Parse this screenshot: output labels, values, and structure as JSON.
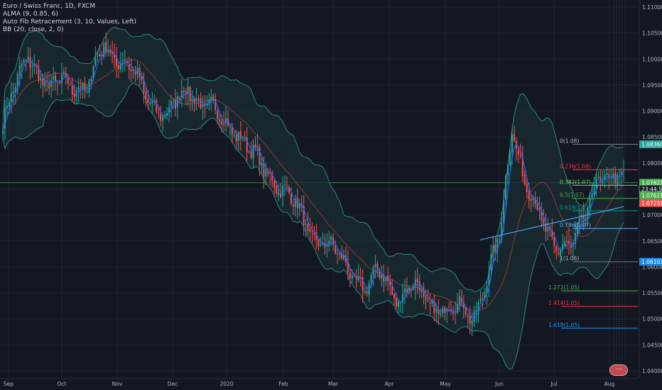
{
  "legend": {
    "symbol": "Euro / Swiss Franc, 1D, FXCM",
    "alma": "ALMA (9, 0.85, 6)",
    "fib": "Auto Fib Retracement (3, 10, Values, Left)",
    "bb": "BB (20, close, 2, 0)"
  },
  "colors": {
    "background": "#131722",
    "grid": "#1f2330",
    "up": "#26a69a",
    "down": "#ef5350",
    "alma": "#2962ff",
    "bb_basis": "#8b3a3a",
    "bb_band": "#2a8a82",
    "bb_fill": "#1b2e33",
    "trendline": "#42a5f5"
  },
  "chart_data": {
    "type": "candlestick",
    "instrument": "Euro / Swiss Franc",
    "timeframe": "1D",
    "x_labels": [
      "Sep",
      "Oct",
      "Nov",
      "Dec",
      "2020",
      "Feb",
      "Mar",
      "Apr",
      "May",
      "Jun",
      "Jul",
      "Aug"
    ],
    "y_ticks": [
      "1.11000",
      "1.10500",
      "1.10000",
      "1.09500",
      "1.09000",
      "1.08500",
      "1.08000",
      "1.07500",
      "1.07000",
      "1.06500",
      "1.06000",
      "1.05500",
      "1.05000",
      "1.04500",
      "1.04000"
    ],
    "ylim": [
      1.0385,
      1.1115
    ],
    "close_path": [
      [
        0,
        1.0875
      ],
      [
        12,
        1.1015
      ],
      [
        22,
        1.0935
      ],
      [
        30,
        1.0965
      ],
      [
        40,
        1.0935
      ],
      [
        48,
        1.103
      ],
      [
        58,
        1.099
      ],
      [
        68,
        1.0935
      ],
      [
        78,
        1.0885
      ],
      [
        88,
        1.095
      ],
      [
        95,
        1.091
      ],
      [
        110,
        1.087
      ],
      [
        118,
        1.0815
      ],
      [
        128,
        1.0775
      ],
      [
        138,
        1.0722
      ],
      [
        148,
        1.066
      ],
      [
        155,
        1.0635
      ],
      [
        165,
        1.06
      ],
      [
        172,
        1.0555
      ],
      [
        180,
        1.059
      ],
      [
        188,
        1.054
      ],
      [
        195,
        1.056
      ],
      [
        204,
        1.053
      ],
      [
        212,
        1.051
      ],
      [
        218,
        1.0525
      ],
      [
        224,
        1.051
      ],
      [
        230,
        1.057
      ],
      [
        236,
        1.0655
      ],
      [
        242,
        1.088
      ],
      [
        248,
        1.076
      ],
      [
        254,
        1.07
      ],
      [
        262,
        1.065
      ],
      [
        270,
        1.063
      ],
      [
        276,
        1.069
      ],
      [
        282,
        1.078
      ],
      [
        288,
        1.076
      ],
      [
        294,
        1.077
      ]
    ],
    "fib_levels": [
      {
        "ratio": "0",
        "price": "1.08"
      },
      {
        "ratio": "0.236",
        "price": "1.08"
      },
      {
        "ratio": "0.382",
        "price": "1.07"
      },
      {
        "ratio": "0.5",
        "price": "1.07"
      },
      {
        "ratio": "0.618",
        "price": "1.07"
      },
      {
        "ratio": "0.786",
        "price": "1.07"
      },
      {
        "ratio": "1",
        "price": "1.06"
      },
      {
        "ratio": "1.272",
        "price": "1.05"
      },
      {
        "ratio": "1.414",
        "price": "1.05"
      },
      {
        "ratio": "1.618",
        "price": "1.05"
      }
    ],
    "fib_values": [
      1.0836,
      1.0787,
      1.0757,
      1.0732,
      1.0708,
      1.0674,
      1.061,
      1.0554,
      1.0524,
      1.0482
    ],
    "price_tags": [
      "1.08360",
      "1.07621",
      "23:44:50",
      "1.07621",
      "1.07231",
      "1.06103"
    ],
    "price_tag_values": [
      1.0836,
      1.0762,
      1.075,
      1.0738,
      1.0723,
      1.061
    ],
    "current_price": 1.0762
  },
  "badge": "⋯"
}
